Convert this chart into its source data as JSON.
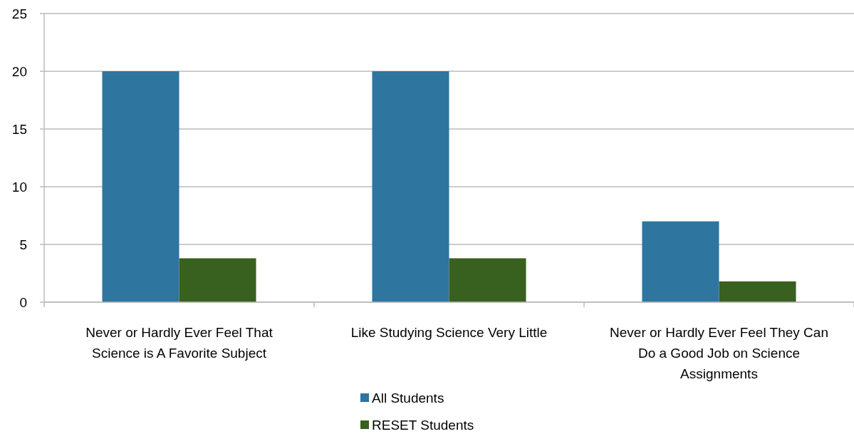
{
  "chart_data": {
    "type": "bar",
    "categories": [
      "Never or Hardly Ever Feel That Science is A Favorite Subject",
      "Like Studying Science Very Little",
      "Never or Hardly Ever Feel They Can Do a Good Job on Science Assignments"
    ],
    "series": [
      {
        "name": "All Students",
        "color": "#2e75a0",
        "values": [
          20,
          20,
          7
        ]
      },
      {
        "name": "RESET Students",
        "color": "#38601e",
        "values": [
          3.8,
          3.8,
          1.8
        ]
      }
    ],
    "ylim": [
      0,
      25
    ],
    "yticks": [
      0,
      5,
      10,
      15,
      20,
      25
    ],
    "grid": "y",
    "legend": "bottom"
  }
}
